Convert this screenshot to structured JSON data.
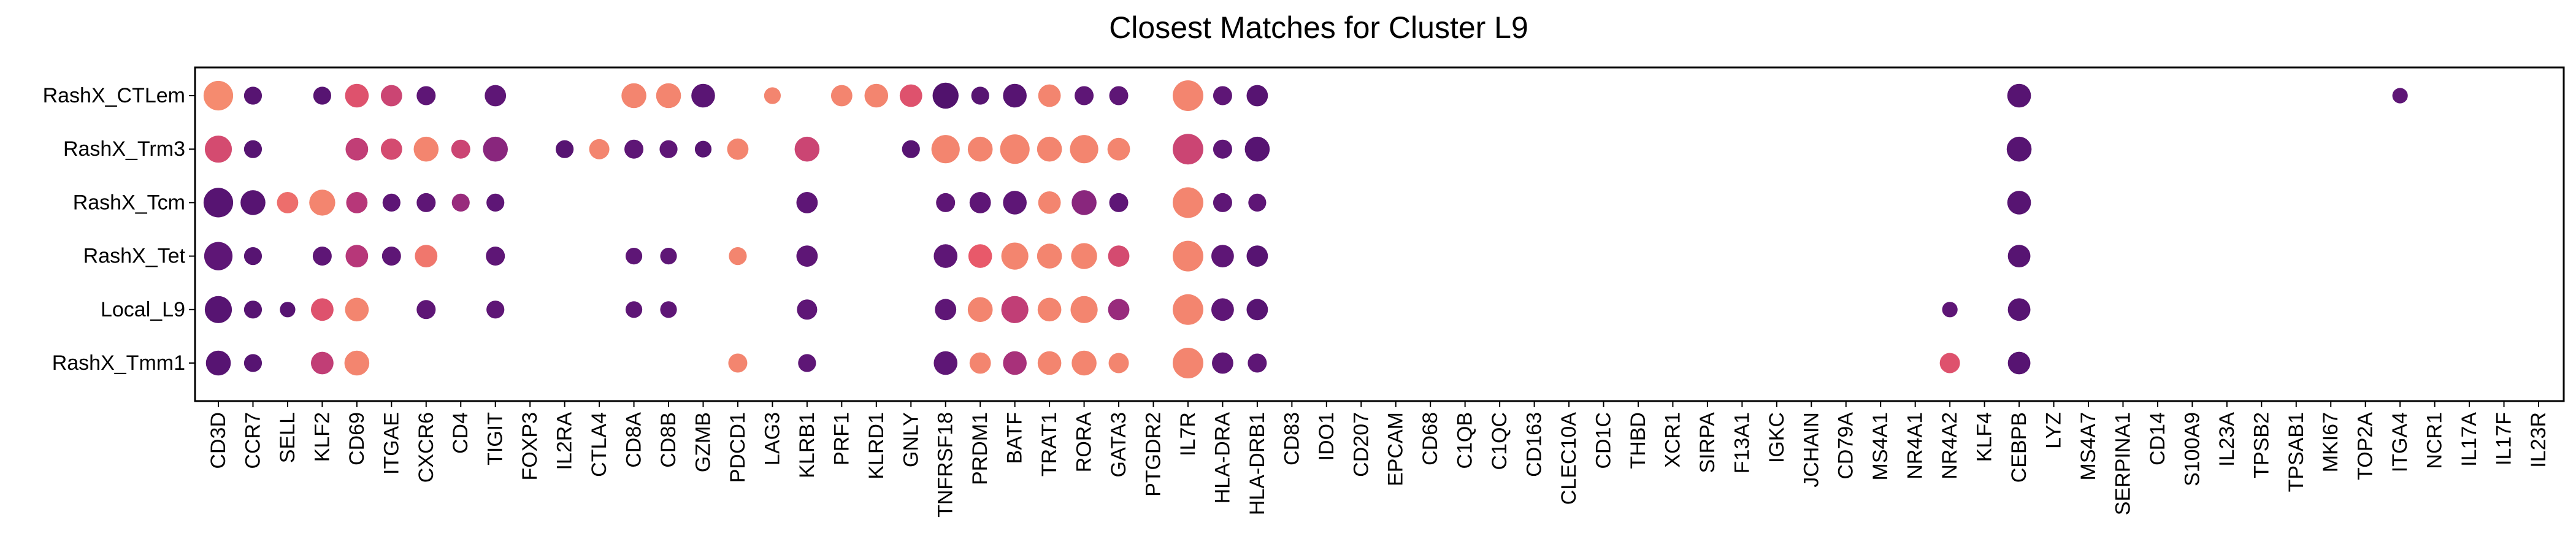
{
  "chart_data": {
    "type": "dot",
    "title": "Closest Matches for Cluster L9",
    "xlabel": "",
    "ylabel": "",
    "grid": false,
    "legend": "none",
    "rows": [
      "RashX_CTLem",
      "RashX_Trm3",
      "RashX_Tcm",
      "RashX_Tet",
      "Local_L9",
      "RashX_Tmm1"
    ],
    "genes": [
      "CD3D",
      "CCR7",
      "SELL",
      "KLF2",
      "CD69",
      "ITGAE",
      "CXCR6",
      "CD4",
      "TIGIT",
      "FOXP3",
      "IL2RA",
      "CTLA4",
      "CD8A",
      "CD8B",
      "GZMB",
      "PDCD1",
      "LAG3",
      "KLRB1",
      "PRF1",
      "KLRD1",
      "GNLY",
      "TNFRSF18",
      "PRDM1",
      "BATF",
      "TRAT1",
      "RORA",
      "GATA3",
      "PTGDR2",
      "IL7R",
      "HLA-DRA",
      "HLA-DRB1",
      "CD83",
      "IDO1",
      "CD207",
      "EPCAM",
      "CD68",
      "C1QB",
      "C1QC",
      "CD163",
      "CLEC10A",
      "CD1C",
      "THBD",
      "XCR1",
      "SIRPA",
      "F13A1",
      "IGKC",
      "JCHAIN",
      "CD79A",
      "MS4A1",
      "NR4A1",
      "NR4A2",
      "KLF4",
      "CEBPB",
      "LYZ",
      "MS4A7",
      "SERPINA1",
      "CD14",
      "S100A9",
      "IL23A",
      "TPSB2",
      "TPSAB1",
      "MKI67",
      "TOP2A",
      "ITGA4",
      "NCR1",
      "IL17A",
      "IL17F",
      "IL23R"
    ],
    "size_scale": "relative 0-1 (largest dot = 1)",
    "color_scale": "magma-like: 0 = dark purple, 1 = light orange",
    "colormap": [
      "#4b1068",
      "#6a1a80",
      "#b73779",
      "#e8596a",
      "#fba372"
    ],
    "points": [
      {
        "row": "RashX_CTLem",
        "gene": "CD3D",
        "size": 0.95,
        "color": 0.92
      },
      {
        "row": "RashX_CTLem",
        "gene": "CCR7",
        "size": 0.45,
        "color": 0.1
      },
      {
        "row": "RashX_CTLem",
        "gene": "KLF2",
        "size": 0.45,
        "color": 0.1
      },
      {
        "row": "RashX_CTLem",
        "gene": "CD69",
        "size": 0.7,
        "color": 0.7
      },
      {
        "row": "RashX_CTLem",
        "gene": "ITGAE",
        "size": 0.6,
        "color": 0.6
      },
      {
        "row": "RashX_CTLem",
        "gene": "CXCR6",
        "size": 0.5,
        "color": 0.15
      },
      {
        "row": "RashX_CTLem",
        "gene": "TIGIT",
        "size": 0.6,
        "color": 0.15
      },
      {
        "row": "RashX_CTLem",
        "gene": "CD8A",
        "size": 0.75,
        "color": 0.9
      },
      {
        "row": "RashX_CTLem",
        "gene": "CD8B",
        "size": 0.75,
        "color": 0.9
      },
      {
        "row": "RashX_CTLem",
        "gene": "GZMB",
        "size": 0.7,
        "color": 0.12
      },
      {
        "row": "RashX_CTLem",
        "gene": "LAG3",
        "size": 0.4,
        "color": 0.9
      },
      {
        "row": "RashX_CTLem",
        "gene": "PRF1",
        "size": 0.6,
        "color": 0.9
      },
      {
        "row": "RashX_CTLem",
        "gene": "KLRD1",
        "size": 0.7,
        "color": 0.9
      },
      {
        "row": "RashX_CTLem",
        "gene": "GNLY",
        "size": 0.65,
        "color": 0.7
      },
      {
        "row": "RashX_CTLem",
        "gene": "TNFRSF18",
        "size": 0.8,
        "color": 0.05
      },
      {
        "row": "RashX_CTLem",
        "gene": "PRDM1",
        "size": 0.45,
        "color": 0.1
      },
      {
        "row": "RashX_CTLem",
        "gene": "BATF",
        "size": 0.7,
        "color": 0.1
      },
      {
        "row": "RashX_CTLem",
        "gene": "TRAT1",
        "size": 0.65,
        "color": 0.9
      },
      {
        "row": "RashX_CTLem",
        "gene": "RORA",
        "size": 0.5,
        "color": 0.15
      },
      {
        "row": "RashX_CTLem",
        "gene": "GATA3",
        "size": 0.5,
        "color": 0.15
      },
      {
        "row": "RashX_CTLem",
        "gene": "IL7R",
        "size": 1.0,
        "color": 0.9
      },
      {
        "row": "RashX_CTLem",
        "gene": "HLA-DRA",
        "size": 0.5,
        "color": 0.15
      },
      {
        "row": "RashX_CTLem",
        "gene": "HLA-DRB1",
        "size": 0.6,
        "color": 0.1
      },
      {
        "row": "RashX_CTLem",
        "gene": "CEBPB",
        "size": 0.7,
        "color": 0.1
      },
      {
        "row": "RashX_CTLem",
        "gene": "ITGA4",
        "size": 0.35,
        "color": 0.15
      },
      {
        "row": "RashX_Trm3",
        "gene": "CD3D",
        "size": 0.85,
        "color": 0.65
      },
      {
        "row": "RashX_Trm3",
        "gene": "CCR7",
        "size": 0.45,
        "color": 0.1
      },
      {
        "row": "RashX_Trm3",
        "gene": "CD69",
        "size": 0.65,
        "color": 0.55
      },
      {
        "row": "RashX_Trm3",
        "gene": "ITGAE",
        "size": 0.6,
        "color": 0.65
      },
      {
        "row": "RashX_Trm3",
        "gene": "CXCR6",
        "size": 0.75,
        "color": 0.9
      },
      {
        "row": "RashX_Trm3",
        "gene": "CD4",
        "size": 0.5,
        "color": 0.6
      },
      {
        "row": "RashX_Trm3",
        "gene": "TIGIT",
        "size": 0.75,
        "color": 0.35
      },
      {
        "row": "RashX_Trm3",
        "gene": "IL2RA",
        "size": 0.45,
        "color": 0.1
      },
      {
        "row": "RashX_Trm3",
        "gene": "CTLA4",
        "size": 0.55,
        "color": 0.9
      },
      {
        "row": "RashX_Trm3",
        "gene": "CD8A",
        "size": 0.5,
        "color": 0.15
      },
      {
        "row": "RashX_Trm3",
        "gene": "CD8B",
        "size": 0.45,
        "color": 0.15
      },
      {
        "row": "RashX_Trm3",
        "gene": "GZMB",
        "size": 0.4,
        "color": 0.1
      },
      {
        "row": "RashX_Trm3",
        "gene": "PDCD1",
        "size": 0.6,
        "color": 0.9
      },
      {
        "row": "RashX_Trm3",
        "gene": "KLRB1",
        "size": 0.75,
        "color": 0.6
      },
      {
        "row": "RashX_Trm3",
        "gene": "GNLY",
        "size": 0.45,
        "color": 0.1
      },
      {
        "row": "RashX_Trm3",
        "gene": "TNFRSF18",
        "size": 0.9,
        "color": 0.9
      },
      {
        "row": "RashX_Trm3",
        "gene": "PRDM1",
        "size": 0.75,
        "color": 0.9
      },
      {
        "row": "RashX_Trm3",
        "gene": "BATF",
        "size": 0.95,
        "color": 0.9
      },
      {
        "row": "RashX_Trm3",
        "gene": "TRAT1",
        "size": 0.75,
        "color": 0.9
      },
      {
        "row": "RashX_Trm3",
        "gene": "RORA",
        "size": 0.9,
        "color": 0.9
      },
      {
        "row": "RashX_Trm3",
        "gene": "GATA3",
        "size": 0.65,
        "color": 0.9
      },
      {
        "row": "RashX_Trm3",
        "gene": "IL7R",
        "size": 1.0,
        "color": 0.6
      },
      {
        "row": "RashX_Trm3",
        "gene": "HLA-DRA",
        "size": 0.5,
        "color": 0.15
      },
      {
        "row": "RashX_Trm3",
        "gene": "HLA-DRB1",
        "size": 0.75,
        "color": 0.1
      },
      {
        "row": "RashX_Trm3",
        "gene": "CEBPB",
        "size": 0.75,
        "color": 0.1
      },
      {
        "row": "RashX_Tcm",
        "gene": "CD3D",
        "size": 0.95,
        "color": 0.1
      },
      {
        "row": "RashX_Tcm",
        "gene": "CCR7",
        "size": 0.75,
        "color": 0.1
      },
      {
        "row": "RashX_Tcm",
        "gene": "SELL",
        "size": 0.6,
        "color": 0.82
      },
      {
        "row": "RashX_Tcm",
        "gene": "KLF2",
        "size": 0.8,
        "color": 0.9
      },
      {
        "row": "RashX_Tcm",
        "gene": "CD69",
        "size": 0.6,
        "color": 0.5
      },
      {
        "row": "RashX_Tcm",
        "gene": "ITGAE",
        "size": 0.45,
        "color": 0.15
      },
      {
        "row": "RashX_Tcm",
        "gene": "CXCR6",
        "size": 0.5,
        "color": 0.15
      },
      {
        "row": "RashX_Tcm",
        "gene": "CD4",
        "size": 0.45,
        "color": 0.4
      },
      {
        "row": "RashX_Tcm",
        "gene": "TIGIT",
        "size": 0.45,
        "color": 0.15
      },
      {
        "row": "RashX_Tcm",
        "gene": "KLRB1",
        "size": 0.6,
        "color": 0.15
      },
      {
        "row": "RashX_Tcm",
        "gene": "TNFRSF18",
        "size": 0.5,
        "color": 0.15
      },
      {
        "row": "RashX_Tcm",
        "gene": "PRDM1",
        "size": 0.6,
        "color": 0.15
      },
      {
        "row": "RashX_Tcm",
        "gene": "BATF",
        "size": 0.7,
        "color": 0.15
      },
      {
        "row": "RashX_Tcm",
        "gene": "TRAT1",
        "size": 0.65,
        "color": 0.9
      },
      {
        "row": "RashX_Tcm",
        "gene": "RORA",
        "size": 0.75,
        "color": 0.35
      },
      {
        "row": "RashX_Tcm",
        "gene": "GATA3",
        "size": 0.5,
        "color": 0.15
      },
      {
        "row": "RashX_Tcm",
        "gene": "IL7R",
        "size": 1.0,
        "color": 0.9
      },
      {
        "row": "RashX_Tcm",
        "gene": "HLA-DRA",
        "size": 0.5,
        "color": 0.15
      },
      {
        "row": "RashX_Tcm",
        "gene": "HLA-DRB1",
        "size": 0.45,
        "color": 0.15
      },
      {
        "row": "RashX_Tcm",
        "gene": "CEBPB",
        "size": 0.7,
        "color": 0.1
      },
      {
        "row": "RashX_Tet",
        "gene": "CD3D",
        "size": 0.9,
        "color": 0.15
      },
      {
        "row": "RashX_Tet",
        "gene": "CCR7",
        "size": 0.45,
        "color": 0.1
      },
      {
        "row": "RashX_Tet",
        "gene": "KLF2",
        "size": 0.5,
        "color": 0.15
      },
      {
        "row": "RashX_Tet",
        "gene": "CD69",
        "size": 0.65,
        "color": 0.5
      },
      {
        "row": "RashX_Tet",
        "gene": "ITGAE",
        "size": 0.5,
        "color": 0.15
      },
      {
        "row": "RashX_Tet",
        "gene": "CXCR6",
        "size": 0.65,
        "color": 0.85
      },
      {
        "row": "RashX_Tet",
        "gene": "TIGIT",
        "size": 0.5,
        "color": 0.15
      },
      {
        "row": "RashX_Tet",
        "gene": "CD8A",
        "size": 0.4,
        "color": 0.15
      },
      {
        "row": "RashX_Tet",
        "gene": "CD8B",
        "size": 0.4,
        "color": 0.15
      },
      {
        "row": "RashX_Tet",
        "gene": "PDCD1",
        "size": 0.45,
        "color": 0.9
      },
      {
        "row": "RashX_Tet",
        "gene": "KLRB1",
        "size": 0.6,
        "color": 0.15
      },
      {
        "row": "RashX_Tet",
        "gene": "TNFRSF18",
        "size": 0.7,
        "color": 0.15
      },
      {
        "row": "RashX_Tet",
        "gene": "PRDM1",
        "size": 0.7,
        "color": 0.75
      },
      {
        "row": "RashX_Tet",
        "gene": "BATF",
        "size": 0.85,
        "color": 0.9
      },
      {
        "row": "RashX_Tet",
        "gene": "TRAT1",
        "size": 0.75,
        "color": 0.9
      },
      {
        "row": "RashX_Tet",
        "gene": "RORA",
        "size": 0.8,
        "color": 0.9
      },
      {
        "row": "RashX_Tet",
        "gene": "GATA3",
        "size": 0.6,
        "color": 0.65
      },
      {
        "row": "RashX_Tet",
        "gene": "IL7R",
        "size": 1.0,
        "color": 0.9
      },
      {
        "row": "RashX_Tet",
        "gene": "HLA-DRA",
        "size": 0.65,
        "color": 0.15
      },
      {
        "row": "RashX_Tet",
        "gene": "HLA-DRB1",
        "size": 0.6,
        "color": 0.1
      },
      {
        "row": "RashX_Tet",
        "gene": "CEBPB",
        "size": 0.65,
        "color": 0.1
      },
      {
        "row": "Local_L9",
        "gene": "CD3D",
        "size": 0.85,
        "color": 0.1
      },
      {
        "row": "Local_L9",
        "gene": "CCR7",
        "size": 0.45,
        "color": 0.1
      },
      {
        "row": "Local_L9",
        "gene": "SELL",
        "size": 0.35,
        "color": 0.1
      },
      {
        "row": "Local_L9",
        "gene": "KLF2",
        "size": 0.65,
        "color": 0.7
      },
      {
        "row": "Local_L9",
        "gene": "CD69",
        "size": 0.7,
        "color": 0.9
      },
      {
        "row": "Local_L9",
        "gene": "CXCR6",
        "size": 0.5,
        "color": 0.15
      },
      {
        "row": "Local_L9",
        "gene": "TIGIT",
        "size": 0.45,
        "color": 0.15
      },
      {
        "row": "Local_L9",
        "gene": "CD8A",
        "size": 0.4,
        "color": 0.15
      },
      {
        "row": "Local_L9",
        "gene": "CD8B",
        "size": 0.4,
        "color": 0.15
      },
      {
        "row": "Local_L9",
        "gene": "KLRB1",
        "size": 0.55,
        "color": 0.15
      },
      {
        "row": "Local_L9",
        "gene": "TNFRSF18",
        "size": 0.6,
        "color": 0.15
      },
      {
        "row": "Local_L9",
        "gene": "PRDM1",
        "size": 0.75,
        "color": 0.9
      },
      {
        "row": "Local_L9",
        "gene": "BATF",
        "size": 0.85,
        "color": 0.55
      },
      {
        "row": "Local_L9",
        "gene": "TRAT1",
        "size": 0.7,
        "color": 0.9
      },
      {
        "row": "Local_L9",
        "gene": "RORA",
        "size": 0.85,
        "color": 0.9
      },
      {
        "row": "Local_L9",
        "gene": "GATA3",
        "size": 0.6,
        "color": 0.4
      },
      {
        "row": "Local_L9",
        "gene": "IL7R",
        "size": 1.0,
        "color": 0.9
      },
      {
        "row": "Local_L9",
        "gene": "HLA-DRA",
        "size": 0.65,
        "color": 0.15
      },
      {
        "row": "Local_L9",
        "gene": "HLA-DRB1",
        "size": 0.6,
        "color": 0.1
      },
      {
        "row": "Local_L9",
        "gene": "NR4A2",
        "size": 0.35,
        "color": 0.15
      },
      {
        "row": "Local_L9",
        "gene": "CEBPB",
        "size": 0.65,
        "color": 0.1
      },
      {
        "row": "RashX_Tmm1",
        "gene": "CD3D",
        "size": 0.75,
        "color": 0.1
      },
      {
        "row": "RashX_Tmm1",
        "gene": "CCR7",
        "size": 0.45,
        "color": 0.1
      },
      {
        "row": "RashX_Tmm1",
        "gene": "KLF2",
        "size": 0.65,
        "color": 0.55
      },
      {
        "row": "RashX_Tmm1",
        "gene": "CD69",
        "size": 0.75,
        "color": 0.9
      },
      {
        "row": "RashX_Tmm1",
        "gene": "PDCD1",
        "size": 0.5,
        "color": 0.9
      },
      {
        "row": "RashX_Tmm1",
        "gene": "KLRB1",
        "size": 0.45,
        "color": 0.15
      },
      {
        "row": "RashX_Tmm1",
        "gene": "TNFRSF18",
        "size": 0.7,
        "color": 0.15
      },
      {
        "row": "RashX_Tmm1",
        "gene": "PRDM1",
        "size": 0.6,
        "color": 0.9
      },
      {
        "row": "RashX_Tmm1",
        "gene": "BATF",
        "size": 0.7,
        "color": 0.45
      },
      {
        "row": "RashX_Tmm1",
        "gene": "TRAT1",
        "size": 0.7,
        "color": 0.9
      },
      {
        "row": "RashX_Tmm1",
        "gene": "RORA",
        "size": 0.75,
        "color": 0.9
      },
      {
        "row": "RashX_Tmm1",
        "gene": "GATA3",
        "size": 0.55,
        "color": 0.9
      },
      {
        "row": "RashX_Tmm1",
        "gene": "IL7R",
        "size": 1.0,
        "color": 0.9
      },
      {
        "row": "RashX_Tmm1",
        "gene": "HLA-DRA",
        "size": 0.6,
        "color": 0.15
      },
      {
        "row": "RashX_Tmm1",
        "gene": "HLA-DRB1",
        "size": 0.5,
        "color": 0.15
      },
      {
        "row": "RashX_Tmm1",
        "gene": "NR4A2",
        "size": 0.55,
        "color": 0.7
      },
      {
        "row": "RashX_Tmm1",
        "gene": "CEBPB",
        "size": 0.65,
        "color": 0.1
      }
    ]
  }
}
